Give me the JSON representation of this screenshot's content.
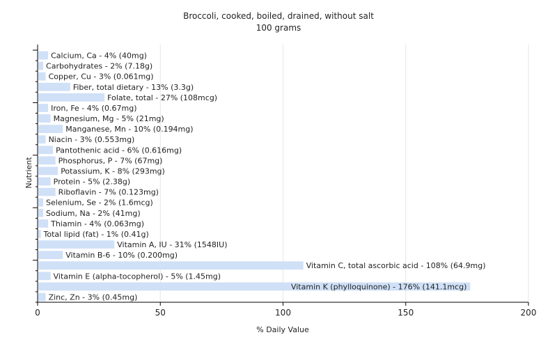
{
  "chart_data": {
    "type": "bar",
    "orientation": "horizontal",
    "title": "Broccoli, cooked, boiled, drained, without salt",
    "subtitle": "100 grams",
    "xlabel": "% Daily Value",
    "ylabel": "Nutrient",
    "xlim": [
      0,
      200
    ],
    "xticks": [
      0,
      50,
      100,
      150,
      200
    ],
    "grid": true,
    "bar_color": "#cfe0f7",
    "categories": [
      "Calcium, Ca",
      "Carbohydrates",
      "Copper, Cu",
      "Fiber, total dietary",
      "Folate, total",
      "Iron, Fe",
      "Magnesium, Mg",
      "Manganese, Mn",
      "Niacin",
      "Pantothenic acid",
      "Phosphorus, P",
      "Potassium, K",
      "Protein",
      "Riboflavin",
      "Selenium, Se",
      "Sodium, Na",
      "Thiamin",
      "Total lipid (fat)",
      "Vitamin A, IU",
      "Vitamin B-6",
      "Vitamin C, total ascorbic acid",
      "Vitamin E (alpha-tocopherol)",
      "Vitamin K (phylloquinone)",
      "Zinc, Zn"
    ],
    "values": [
      4,
      2,
      3,
      13,
      27,
      4,
      5,
      10,
      3,
      6,
      7,
      8,
      5,
      7,
      2,
      2,
      4,
      1,
      31,
      10,
      108,
      5,
      176,
      3
    ],
    "labels": [
      "Calcium, Ca - 4% (40mg)",
      "Carbohydrates - 2% (7.18g)",
      "Copper, Cu - 3% (0.061mg)",
      "Fiber, total dietary - 13% (3.3g)",
      "Folate, total - 27% (108mcg)",
      "Iron, Fe - 4% (0.67mg)",
      "Magnesium, Mg - 5% (21mg)",
      "Manganese, Mn - 10% (0.194mg)",
      "Niacin - 3% (0.553mg)",
      "Pantothenic acid - 6% (0.616mg)",
      "Phosphorus, P - 7% (67mg)",
      "Potassium, K - 8% (293mg)",
      "Protein - 5% (2.38g)",
      "Riboflavin - 7% (0.123mg)",
      "Selenium, Se - 2% (1.6mcg)",
      "Sodium, Na - 2% (41mg)",
      "Thiamin - 4% (0.063mg)",
      "Total lipid (fat) - 1% (0.41g)",
      "Vitamin A, IU - 31% (1548IU)",
      "Vitamin B-6 - 10% (0.200mg)",
      "Vitamin C, total ascorbic acid - 108% (64.9mg)",
      "Vitamin E (alpha-tocopherol) - 5% (1.45mg)",
      "Vitamin K (phylloquinone) - 176% (141.1mcg)",
      "Zinc, Zn - 3% (0.45mg)"
    ]
  }
}
